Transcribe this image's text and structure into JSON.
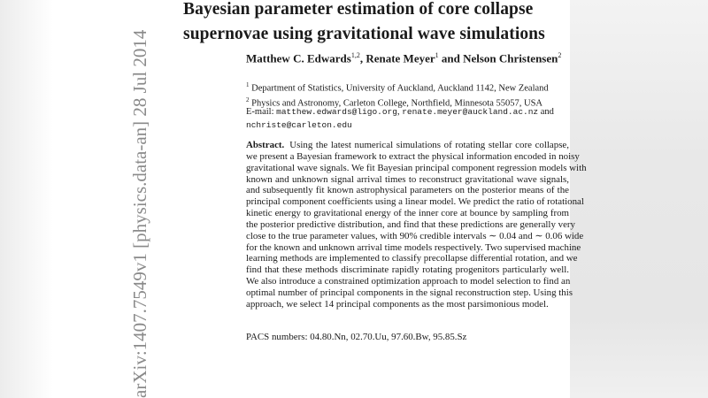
{
  "stamp": "arXiv:1407.7549v1  [physics.data-an]  28 Jul 2014",
  "title": "Bayesian parameter estimation of core collapse supernovae using gravitational wave simulations",
  "authors": {
    "line1_a": "Matthew C. Edwards",
    "sup_a": "1,2",
    "line1_b": ", Renate Meyer",
    "sup_b": "1",
    "line1_c": " and Nelson Christensen",
    "sup_c": "2"
  },
  "affiliations": [
    {
      "num": "1",
      "text": "Department of Statistics, University of Auckland, Auckland 1142, New Zealand"
    },
    {
      "num": "2",
      "text": "Physics and Astronomy, Carleton College, Northfield, Minnesota 55057, USA"
    }
  ],
  "email": {
    "label": "E-mail: ",
    "addr1": "matthew.edwards@ligo.org",
    "sep": ", ",
    "addr2": "renate.meyer@auckland.ac.nz",
    "and": " and",
    "addr3": "nchriste@carleton.edu"
  },
  "abstract": {
    "heading": "Abstract.",
    "lines": [
      "Using the latest numerical simulations of rotating stellar core collapse,",
      "we present a Bayesian framework to extract the physical information encoded in noisy",
      "gravitational wave signals. We fit Bayesian principal component regression models with",
      "known and unknown signal arrival times to reconstruct gravitational wave signals,",
      "and subsequently fit known astrophysical parameters on the posterior means of the",
      "principal component coefficients using a linear model. We predict the ratio of rotational",
      "kinetic energy to gravitational energy of the inner core at bounce by sampling from",
      "the posterior predictive distribution, and find that these predictions are generally very",
      "close to the true parameter values, with 90% credible intervals ∼ 0.04 and ∼ 0.06 wide",
      "for the known and unknown arrival time models respectively. Two supervised machine",
      "learning methods are implemented to classify precollapse differential rotation, and we",
      "find that these methods discriminate rapidly rotating progenitors particularly well.",
      "We also introduce a constrained optimization approach to model selection to find an",
      "optimal number of principal components in the signal reconstruction step. Using this",
      "approach, we select 14 principal components as the most parsimonious model."
    ]
  },
  "pacs": "PACS numbers: 04.80.Nn, 02.70.Uu, 97.60.Bw, 95.85.Sz"
}
